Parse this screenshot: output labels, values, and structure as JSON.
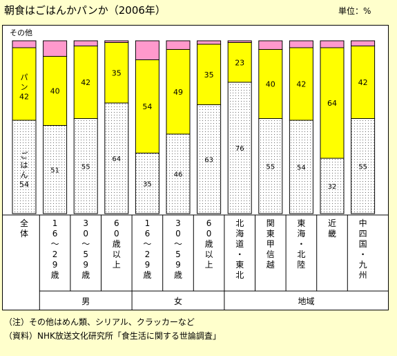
{
  "title": "朝食はごはんかパンか（2006年）",
  "unit": "単位：%",
  "colors": {
    "rice": "#ffffff",
    "bread": "#ffff00",
    "other": "#ff99cc",
    "dots": "#666666"
  },
  "chart_data": {
    "type": "bar",
    "stacked": true,
    "categories": [
      "全体",
      "16〜29歳",
      "30〜59歳",
      "60歳以上",
      "16〜29歳",
      "30〜59歳",
      "60歳以上",
      "北海道・東北",
      "関東甲信越",
      "東海・北陸",
      "近畿",
      "中四国・九州"
    ],
    "groups": [
      {
        "label": "男",
        "categories": [
          1,
          2,
          3
        ]
      },
      {
        "label": "女",
        "categories": [
          4,
          5,
          6
        ]
      },
      {
        "label": "地域",
        "categories": [
          7,
          8,
          9,
          10,
          11
        ]
      }
    ],
    "series": [
      {
        "name": "ごはん",
        "values": [
          54,
          51,
          55,
          64,
          35,
          46,
          63,
          76,
          55,
          54,
          32,
          55
        ]
      },
      {
        "name": "パン",
        "values": [
          42,
          40,
          42,
          35,
          54,
          49,
          35,
          23,
          40,
          42,
          64,
          42
        ]
      },
      {
        "name": "その他",
        "values": [
          4,
          9,
          3,
          1,
          11,
          5,
          2,
          1,
          5,
          4,
          4,
          3
        ]
      }
    ],
    "ylim": [
      0,
      100
    ]
  },
  "notes": [
    "（注）その他はめん類、シリアル、クラッカーなど",
    "（資料）NHK放送文化研究所「食生活に関する世論調査」"
  ]
}
